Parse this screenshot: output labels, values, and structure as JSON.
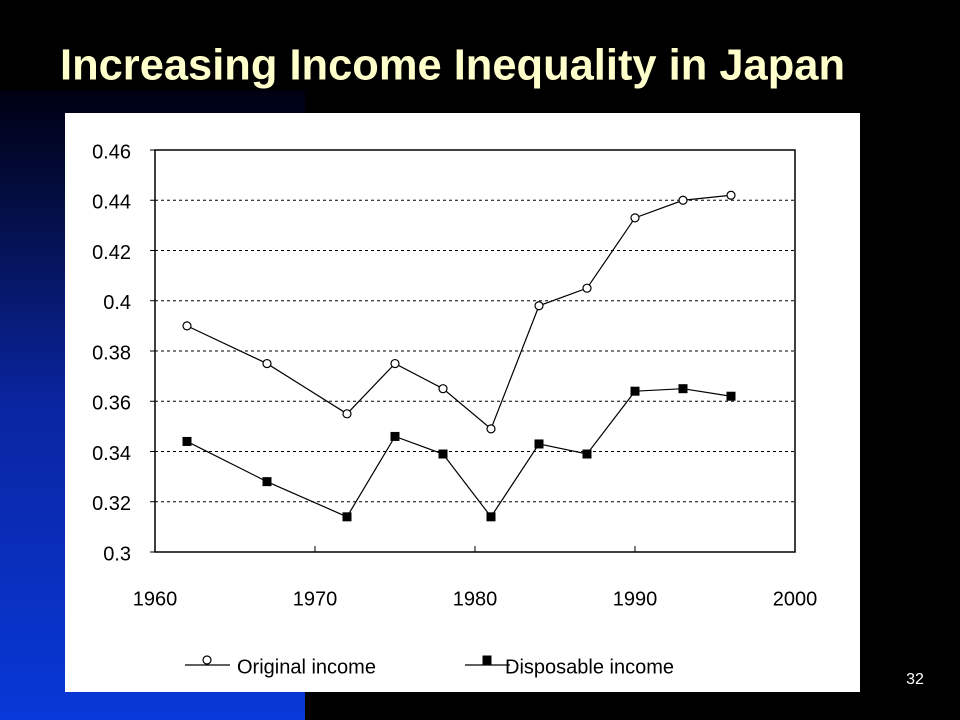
{
  "page_number": "32",
  "chart_data": {
    "type": "line",
    "title": "Increasing Income Inequality in Japan",
    "x": [
      1962,
      1967,
      1972,
      1975,
      1978,
      1981,
      1984,
      1987,
      1990,
      1993,
      1996
    ],
    "series": [
      {
        "name": "Original income",
        "color": "#000000",
        "marker": "circle",
        "values": [
          0.39,
          0.375,
          0.355,
          0.375,
          0.365,
          0.349,
          0.398,
          0.405,
          0.433,
          0.44,
          0.442
        ]
      },
      {
        "name": "Disposable income",
        "color": "#000000",
        "marker": "square",
        "values": [
          0.344,
          0.328,
          0.314,
          0.346,
          0.339,
          0.314,
          0.343,
          0.339,
          0.364,
          0.365,
          0.362
        ]
      }
    ],
    "xlim": [
      1960,
      2000
    ],
    "xticks": [
      1960,
      1970,
      1980,
      1990,
      2000
    ],
    "ylim": [
      0.3,
      0.46
    ],
    "yticks": [
      0.3,
      0.32,
      0.34,
      0.36,
      0.38,
      0.4,
      0.42,
      0.44,
      0.46
    ],
    "grid": true,
    "legend": "bottom"
  }
}
